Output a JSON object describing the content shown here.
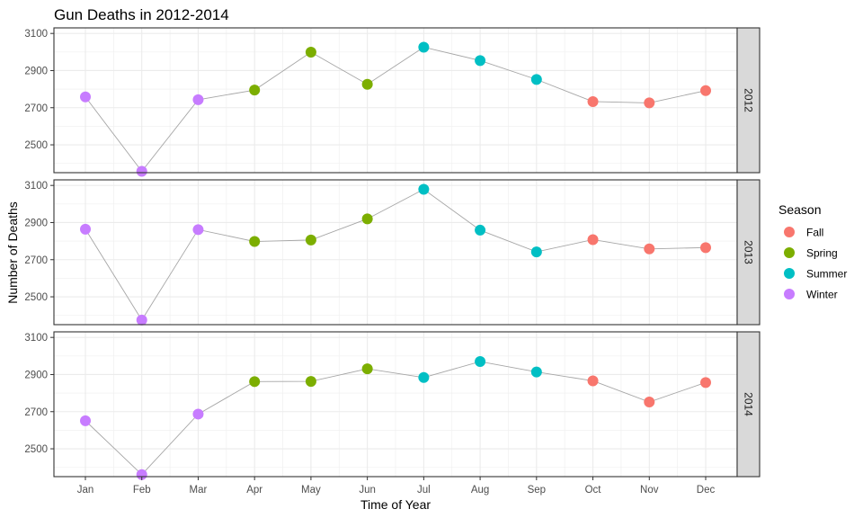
{
  "chart_data": {
    "type": "scatter",
    "title": "Gun Deaths in 2012-2014",
    "xlabel": "Time of Year",
    "ylabel": "Number of Deaths",
    "categories": [
      "Jan",
      "Feb",
      "Mar",
      "Apr",
      "May",
      "Jun",
      "Jul",
      "Aug",
      "Sep",
      "Oct",
      "Nov",
      "Dec"
    ],
    "y_ticks": [
      "2500",
      "2700",
      "2900",
      "3100"
    ],
    "ylim": [
      2350,
      3130
    ],
    "grid": true,
    "facet_variable": "year",
    "legend": {
      "title": "Season",
      "position": "right",
      "entries": [
        {
          "label": "Fall",
          "color": "#F8766D"
        },
        {
          "label": "Spring",
          "color": "#7CAE00"
        },
        {
          "label": "Summer",
          "color": "#00BFC4"
        },
        {
          "label": "Winter",
          "color": "#C77CFF"
        }
      ]
    },
    "line_color": "#a6a6a6",
    "season_by_month": [
      "Winter",
      "Winter",
      "Winter",
      "Spring",
      "Spring",
      "Spring",
      "Summer",
      "Summer",
      "Summer",
      "Fall",
      "Fall",
      "Fall"
    ],
    "panels": [
      {
        "label": "2012",
        "values": [
          2758,
          2357,
          2743,
          2795,
          2999,
          2826,
          3026,
          2954,
          2852,
          2733,
          2726,
          2792
        ]
      },
      {
        "label": "2013",
        "values": [
          2864,
          2375,
          2862,
          2798,
          2806,
          2920,
          3079,
          2859,
          2742,
          2808,
          2758,
          2765
        ]
      },
      {
        "label": "2014",
        "values": [
          2651,
          2361,
          2687,
          2862,
          2863,
          2931,
          2884,
          2970,
          2914,
          2866,
          2752,
          2857
        ]
      }
    ]
  }
}
